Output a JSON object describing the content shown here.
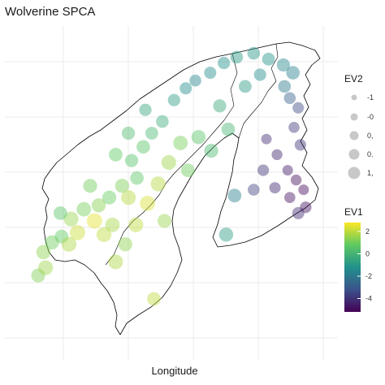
{
  "title": "Wolverine SPCA",
  "chart_data": {
    "type": "scatter",
    "title": "Wolverine SPCA",
    "xlabel": "Longitude",
    "ylabel": "",
    "grid": true,
    "color_scale": "viridis",
    "colors": {
      "panel_bg": "#ffffff",
      "grid": "#ebebeb",
      "outline": "#000000",
      "point_alpha": 0.45
    },
    "legend_ev2": {
      "title": "EV2",
      "labels": [
        "-1",
        "-0",
        "0,",
        "0.",
        "1,"
      ]
    },
    "legend_ev1": {
      "title": "EV1",
      "labels": [
        "2",
        "0",
        "-2",
        "-4"
      ],
      "range": [
        -5.2,
        2.8
      ]
    },
    "points": [
      {
        "lon": 5.3,
        "lat": 59.2,
        "ev1": 1.2,
        "ev2": 0.3
      },
      {
        "lon": 6.0,
        "lat": 59.6,
        "ev1": 1.6,
        "ev2": 0.6
      },
      {
        "lon": 5.8,
        "lat": 60.4,
        "ev1": 1.4,
        "ev2": 0.5
      },
      {
        "lon": 6.6,
        "lat": 60.9,
        "ev1": 1.0,
        "ev2": 0.4
      },
      {
        "lon": 7.5,
        "lat": 61.2,
        "ev1": 0.8,
        "ev2": 0.2
      },
      {
        "lon": 8.2,
        "lat": 60.8,
        "ev1": 1.8,
        "ev2": 0.7
      },
      {
        "lon": 9.0,
        "lat": 61.4,
        "ev1": 2.2,
        "ev2": 0.8
      },
      {
        "lon": 8.4,
        "lat": 62.1,
        "ev1": 1.5,
        "ev2": 0.6
      },
      {
        "lon": 9.6,
        "lat": 62.6,
        "ev1": 1.1,
        "ev2": 0.5
      },
      {
        "lon": 10.6,
        "lat": 62.0,
        "ev1": 2.5,
        "ev2": 0.9
      },
      {
        "lon": 11.5,
        "lat": 61.3,
        "ev1": 2.0,
        "ev2": 0.7
      },
      {
        "lon": 12.3,
        "lat": 61.8,
        "ev1": 1.7,
        "ev2": 0.5
      },
      {
        "lon": 11.0,
        "lat": 62.8,
        "ev1": 1.3,
        "ev2": 0.4
      },
      {
        "lon": 12.0,
        "lat": 63.2,
        "ev1": 0.9,
        "ev2": 0.3
      },
      {
        "lon": 13.2,
        "lat": 63.8,
        "ev1": 1.2,
        "ev2": 0.4
      },
      {
        "lon": 13.8,
        "lat": 63.2,
        "ev1": 1.9,
        "ev2": 0.6
      },
      {
        "lon": 14.6,
        "lat": 64.2,
        "ev1": 0.7,
        "ev2": 0.1
      },
      {
        "lon": 14.1,
        "lat": 65.1,
        "ev1": 0.5,
        "ev2": 0.0
      },
      {
        "lon": 15.2,
        "lat": 65.8,
        "ev1": 0.6,
        "ev2": 0.1
      },
      {
        "lon": 16.0,
        "lat": 66.5,
        "ev1": 0.2,
        "ev2": -0.1
      },
      {
        "lon": 17.0,
        "lat": 67.1,
        "ev1": -0.3,
        "ev2": -0.2
      },
      {
        "lon": 18.1,
        "lat": 68.2,
        "ev1": -0.8,
        "ev2": -0.3
      },
      {
        "lon": 19.2,
        "lat": 68.8,
        "ev1": -1.3,
        "ev2": -0.4
      },
      {
        "lon": 20.1,
        "lat": 69.2,
        "ev1": -1.6,
        "ev2": -0.5
      },
      {
        "lon": 21.5,
        "lat": 69.6,
        "ev1": -1.4,
        "ev2": -0.4
      },
      {
        "lon": 22.8,
        "lat": 70.1,
        "ev1": -1.2,
        "ev2": -0.3
      },
      {
        "lon": 24.0,
        "lat": 70.4,
        "ev1": -0.9,
        "ev2": -0.2
      },
      {
        "lon": 25.6,
        "lat": 70.6,
        "ev1": -1.0,
        "ev2": -0.2
      },
      {
        "lon": 27.0,
        "lat": 70.3,
        "ev1": -1.1,
        "ev2": -0.1
      },
      {
        "lon": 28.4,
        "lat": 70.0,
        "ev1": -1.5,
        "ev2": 0.0
      },
      {
        "lon": 29.3,
        "lat": 69.6,
        "ev1": -1.8,
        "ev2": 0.1
      },
      {
        "lon": 28.5,
        "lat": 68.9,
        "ev1": -2.0,
        "ev2": -0.2
      },
      {
        "lon": 29.0,
        "lat": 68.3,
        "ev1": -2.8,
        "ev2": -0.5
      },
      {
        "lon": 29.8,
        "lat": 67.8,
        "ev1": -3.5,
        "ev2": -0.7
      },
      {
        "lon": 29.4,
        "lat": 66.8,
        "ev1": -3.8,
        "ev2": -0.8
      },
      {
        "lon": 30.0,
        "lat": 65.9,
        "ev1": -4.0,
        "ev2": -0.6
      },
      {
        "lon": 26.8,
        "lat": 66.2,
        "ev1": -4.2,
        "ev2": -1.0
      },
      {
        "lon": 27.8,
        "lat": 65.4,
        "ev1": -4.4,
        "ev2": -0.9
      },
      {
        "lon": 28.8,
        "lat": 64.6,
        "ev1": -4.6,
        "ev2": -1.0
      },
      {
        "lon": 29.6,
        "lat": 64.1,
        "ev1": -4.9,
        "ev2": -0.9
      },
      {
        "lon": 30.3,
        "lat": 63.6,
        "ev1": -5.0,
        "ev2": -1.0
      },
      {
        "lon": 29.0,
        "lat": 63.2,
        "ev1": -4.7,
        "ev2": -0.8
      },
      {
        "lon": 27.6,
        "lat": 63.7,
        "ev1": -4.3,
        "ev2": -0.7
      },
      {
        "lon": 26.5,
        "lat": 64.6,
        "ev1": -4.0,
        "ev2": -0.6
      },
      {
        "lon": 25.6,
        "lat": 63.6,
        "ev1": -3.6,
        "ev2": -0.5
      },
      {
        "lon": 30.5,
        "lat": 62.7,
        "ev1": -4.8,
        "ev2": -0.6
      },
      {
        "lon": 29.8,
        "lat": 62.4,
        "ev1": -4.2,
        "ev2": -0.4
      },
      {
        "lon": 23.8,
        "lat": 63.3,
        "ev1": -1.8,
        "ev2": 0.2
      },
      {
        "lon": 23.0,
        "lat": 61.3,
        "ev1": -0.8,
        "ev2": 0.4
      },
      {
        "lon": 21.6,
        "lat": 65.6,
        "ev1": 0.2,
        "ev2": 0.3
      },
      {
        "lon": 20.4,
        "lat": 66.3,
        "ev1": 0.6,
        "ev2": 0.4
      },
      {
        "lon": 18.7,
        "lat": 66.0,
        "ev1": 1.1,
        "ev2": 0.5
      },
      {
        "lon": 17.6,
        "lat": 65.0,
        "ev1": 1.6,
        "ev2": 0.6
      },
      {
        "lon": 16.6,
        "lat": 63.9,
        "ev1": 1.9,
        "ev2": 0.7
      },
      {
        "lon": 15.6,
        "lat": 62.9,
        "ev1": 2.3,
        "ev2": 0.8
      },
      {
        "lon": 14.5,
        "lat": 61.8,
        "ev1": 2.0,
        "ev2": 0.6
      },
      {
        "lon": 13.5,
        "lat": 60.8,
        "ev1": 1.4,
        "ev2": 0.4
      },
      {
        "lon": 12.6,
        "lat": 59.9,
        "ev1": 1.8,
        "ev2": 0.6
      },
      {
        "lon": 16.2,
        "lat": 58.0,
        "ev1": 2.0,
        "ev2": 0.2
      },
      {
        "lon": 17.2,
        "lat": 62.0,
        "ev1": 1.5,
        "ev2": 0.3
      },
      {
        "lon": 19.4,
        "lat": 64.6,
        "ev1": 1.0,
        "ev2": 0.2
      },
      {
        "lon": 22.4,
        "lat": 67.9,
        "ev1": -0.4,
        "ev2": 0.0
      },
      {
        "lon": 24.8,
        "lat": 68.9,
        "ev1": -0.9,
        "ev2": -0.1
      },
      {
        "lon": 26.2,
        "lat": 69.5,
        "ev1": -1.3,
        "ev2": -0.3
      },
      {
        "lon": 15.4,
        "lat": 67.7,
        "ev1": -0.5,
        "ev2": -0.3
      },
      {
        "lon": 13.8,
        "lat": 66.5,
        "ev1": 0.3,
        "ev2": 0.0
      },
      {
        "lon": 12.6,
        "lat": 65.4,
        "ev1": 0.8,
        "ev2": 0.2
      },
      {
        "lon": 10.2,
        "lat": 63.8,
        "ev1": 1.0,
        "ev2": 0.3
      },
      {
        "lon": 7.4,
        "lat": 62.4,
        "ev1": 0.6,
        "ev2": 0.2
      },
      {
        "lon": 23.2,
        "lat": 66.7,
        "ev1": 0.0,
        "ev2": 0.1
      }
    ]
  }
}
